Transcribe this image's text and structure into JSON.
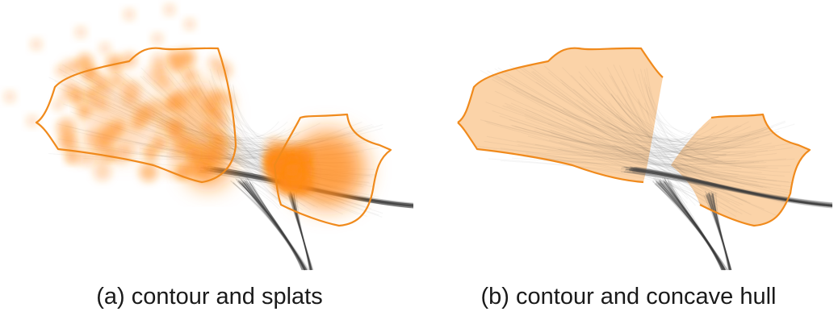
{
  "colors": {
    "contour": "#f08a1c",
    "splat": "#ff8a1a",
    "hull_fill": "#fbd3a8",
    "edge": "#404040"
  },
  "panels": [
    {
      "caption": "(a) contour and splats"
    },
    {
      "caption": "(b) contour and concave hull"
    }
  ]
}
